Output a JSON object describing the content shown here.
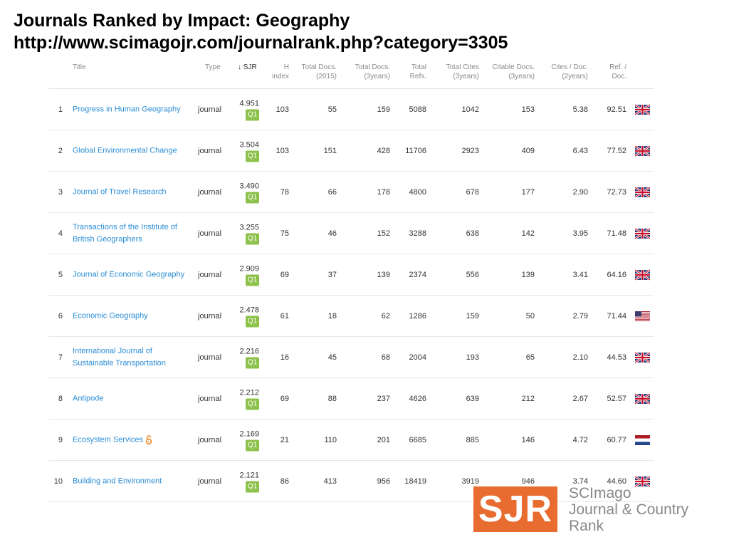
{
  "slide": {
    "title": "Journals Ranked by Impact: Geography",
    "url": "http://www.scimagojr.com/journalrank.php?category=3305"
  },
  "table": {
    "headers": {
      "title": "Title",
      "type": "Type",
      "sjr": "↓ SJR",
      "h_index": [
        "H",
        "index"
      ],
      "total_docs_2015": [
        "Total Docs.",
        "(2015)"
      ],
      "total_docs_3y": [
        "Total Docs.",
        "(3years)"
      ],
      "total_refs": [
        "Total",
        "Refs."
      ],
      "total_cites_3y": [
        "Total Cites",
        "(3years)"
      ],
      "citable_docs_3y": [
        "Citable Docs.",
        "(3years)"
      ],
      "cites_per_doc": [
        "Cites / Doc.",
        "(2years)"
      ],
      "ref_per_doc": [
        "Ref. /",
        "Doc."
      ]
    },
    "rows": [
      {
        "rank": "1",
        "title": [
          "Progress in Human Geography"
        ],
        "type": "journal",
        "sjr": "4.951",
        "quartile": "Q1",
        "h_index": "103",
        "total_docs_2015": "55",
        "total_docs_3y": "159",
        "total_refs": "5088",
        "total_cites_3y": "1042",
        "citable_docs_3y": "153",
        "cites_per_doc": "5.38",
        "ref_per_doc": "92.51",
        "flag": "uk-flag-icon"
      },
      {
        "rank": "2",
        "title": [
          "Global Environmental Change"
        ],
        "type": "journal",
        "sjr": "3.504",
        "quartile": "Q1",
        "h_index": "103",
        "total_docs_2015": "151",
        "total_docs_3y": "428",
        "total_refs": "11706",
        "total_cites_3y": "2923",
        "citable_docs_3y": "409",
        "cites_per_doc": "6.43",
        "ref_per_doc": "77.52",
        "flag": "uk-flag-icon"
      },
      {
        "rank": "3",
        "title": [
          "Journal of Travel Research"
        ],
        "type": "journal",
        "sjr": "3.490",
        "quartile": "Q1",
        "h_index": "78",
        "total_docs_2015": "66",
        "total_docs_3y": "178",
        "total_refs": "4800",
        "total_cites_3y": "678",
        "citable_docs_3y": "177",
        "cites_per_doc": "2.90",
        "ref_per_doc": "72.73",
        "flag": "uk-flag-icon"
      },
      {
        "rank": "4",
        "title": [
          "Transactions of the Institute of",
          "British Geographers"
        ],
        "type": "journal",
        "sjr": "3.255",
        "quartile": "Q1",
        "h_index": "75",
        "total_docs_2015": "46",
        "total_docs_3y": "152",
        "total_refs": "3288",
        "total_cites_3y": "638",
        "citable_docs_3y": "142",
        "cites_per_doc": "3.95",
        "ref_per_doc": "71.48",
        "flag": "uk-flag-icon"
      },
      {
        "rank": "5",
        "title": [
          "Journal of Economic Geography"
        ],
        "type": "journal",
        "sjr": "2.909",
        "quartile": "Q1",
        "h_index": "69",
        "total_docs_2015": "37",
        "total_docs_3y": "139",
        "total_refs": "2374",
        "total_cites_3y": "556",
        "citable_docs_3y": "139",
        "cites_per_doc": "3.41",
        "ref_per_doc": "64.16",
        "flag": "uk-flag-icon"
      },
      {
        "rank": "6",
        "title": [
          "Economic Geography"
        ],
        "type": "journal",
        "sjr": "2.478",
        "quartile": "Q1",
        "h_index": "61",
        "total_docs_2015": "18",
        "total_docs_3y": "62",
        "total_refs": "1286",
        "total_cites_3y": "159",
        "citable_docs_3y": "50",
        "cites_per_doc": "2.79",
        "ref_per_doc": "71.44",
        "flag": "us-flag-icon"
      },
      {
        "rank": "7",
        "title": [
          "International Journal of",
          "Sustainable Transportation"
        ],
        "type": "journal",
        "sjr": "2.216",
        "quartile": "Q1",
        "h_index": "16",
        "total_docs_2015": "45",
        "total_docs_3y": "68",
        "total_refs": "2004",
        "total_cites_3y": "193",
        "citable_docs_3y": "65",
        "cites_per_doc": "2.10",
        "ref_per_doc": "44.53",
        "flag": "uk-flag-icon"
      },
      {
        "rank": "8",
        "title": [
          "Antipode"
        ],
        "type": "journal",
        "sjr": "2.212",
        "quartile": "Q1",
        "h_index": "69",
        "total_docs_2015": "88",
        "total_docs_3y": "237",
        "total_refs": "4626",
        "total_cites_3y": "639",
        "citable_docs_3y": "212",
        "cites_per_doc": "2.67",
        "ref_per_doc": "52.57",
        "flag": "uk-flag-icon"
      },
      {
        "rank": "9",
        "title": [
          "Ecosystem Services"
        ],
        "open_access": true,
        "type": "journal",
        "sjr": "2.169",
        "quartile": "Q1",
        "h_index": "21",
        "total_docs_2015": "110",
        "total_docs_3y": "201",
        "total_refs": "6685",
        "total_cites_3y": "885",
        "citable_docs_3y": "146",
        "cites_per_doc": "4.72",
        "ref_per_doc": "60.77",
        "flag": "netherlands-flag-icon"
      },
      {
        "rank": "10",
        "title": [
          "Building and Environment"
        ],
        "type": "journal",
        "sjr": "2.121",
        "quartile": "Q1",
        "h_index": "86",
        "total_docs_2015": "413",
        "total_docs_3y": "956",
        "total_refs": "18419",
        "total_cites_3y": "3919",
        "citable_docs_3y": "946",
        "cites_per_doc": "3.74",
        "ref_per_doc": "44.60",
        "flag": "uk-flag-icon"
      }
    ]
  },
  "logo": {
    "mark": "SJR",
    "lines": [
      "SCImago",
      "Journal & Country",
      "Rank"
    ]
  },
  "colors": {
    "link": "#2c8ed6",
    "quartile_q1": "#8cc14a",
    "logo_orange": "#e86c30"
  }
}
